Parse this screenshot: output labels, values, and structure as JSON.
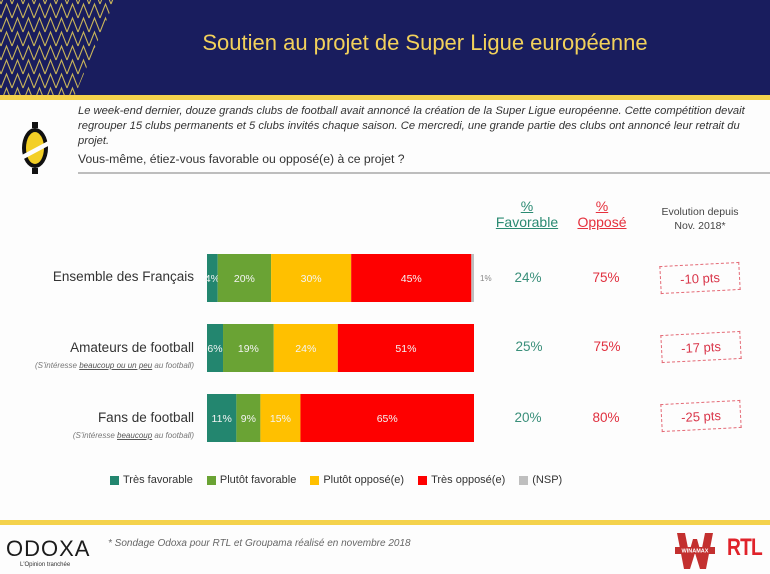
{
  "header": {
    "title": "Soutien au projet de Super Ligue européenne",
    "colors": {
      "background": "#191d5e",
      "title": "#f2d15b",
      "accent": "#f4d24c"
    }
  },
  "intro": {
    "context": "Le week-end dernier, douze grands clubs de football avait annoncé la création de la Super Ligue européenne. Cette compétition devait regrouper 15 clubs permanents et 5 clubs invités chaque saison. Ce mercredi, une grande partie des clubs ont annoncé leur retrait du projet.",
    "question": "Vous-même, étiez-vous favorable ou opposé(e) à ce projet ?"
  },
  "columns": {
    "favorable_pct": "%",
    "favorable_label": "Favorable",
    "oppose_pct": "%",
    "oppose_label": "Opposé",
    "evolution_line1": "Evolution depuis",
    "evolution_line2": "Nov. 2018*"
  },
  "rows": [
    {
      "label": "Ensemble des Français",
      "sub_pre": "",
      "sub_u": "",
      "sub_post": "",
      "favorable": "24%",
      "oppose": "75%",
      "evolution": "-10 pts"
    },
    {
      "label": "Amateurs de football",
      "sub_pre": "(S'intéresse ",
      "sub_u": "beaucoup ou un peu",
      "sub_post": " au football)",
      "favorable": "25%",
      "oppose": "75%",
      "evolution": "-17 pts"
    },
    {
      "label": "Fans de football",
      "sub_pre": "(S'intéresse ",
      "sub_u": "beaucoup",
      "sub_post": " au football)",
      "favorable": "20%",
      "oppose": "80%",
      "evolution": "-25 pts"
    }
  ],
  "chart_data": {
    "type": "bar",
    "orientation": "horizontal",
    "stacked": true,
    "title": "Soutien au projet de Super Ligue européenne",
    "categories": [
      "Ensemble des Français",
      "Amateurs de football",
      "Fans de football"
    ],
    "series": [
      {
        "name": "Très favorable",
        "color": "#23866f",
        "values": [
          4,
          6,
          11
        ]
      },
      {
        "name": "Plutôt favorable",
        "color": "#6aa334",
        "values": [
          20,
          19,
          9
        ]
      },
      {
        "name": "Plutôt opposé(e)",
        "color": "#ffc000",
        "values": [
          30,
          24,
          15
        ]
      },
      {
        "name": "Très opposé(e)",
        "color": "#fe0000",
        "values": [
          45,
          51,
          65
        ]
      },
      {
        "name": "(NSP)",
        "color": "#bfbfbf",
        "values": [
          1,
          0,
          0
        ]
      }
    ],
    "xlim": [
      0,
      100
    ],
    "legend_position": "bottom",
    "unit": "%"
  },
  "legend": [
    {
      "label": "Très favorable",
      "color": "#23866f"
    },
    {
      "label": "Plutôt favorable",
      "color": "#6aa334"
    },
    {
      "label": "Plutôt opposé(e)",
      "color": "#ffc000"
    },
    {
      "label": "Très opposé(e)",
      "color": "#fe0000"
    },
    {
      "label": "(NSP)",
      "color": "#bfbfbf"
    }
  ],
  "footer": {
    "brand": "ODOXA",
    "tagline": "L'Opinion tranchée",
    "footnote": "* Sondage Odoxa pour RTL et Groupama réalisé en novembre 2018",
    "partner1": "WINAMAX",
    "partner2": "RTL"
  }
}
